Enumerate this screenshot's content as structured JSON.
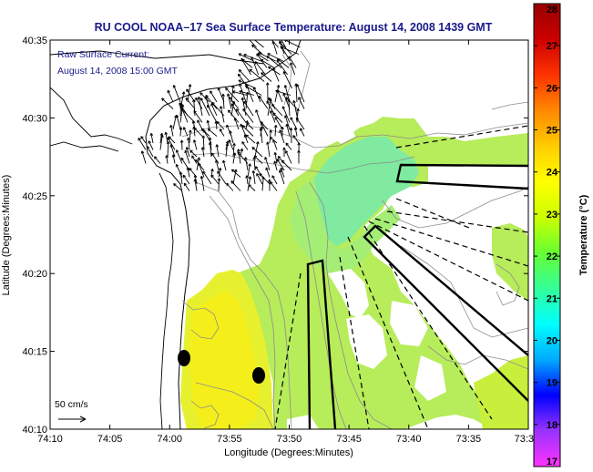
{
  "title": "RU COOL  NOAA–17  Sea Surface Temperature:  August 14, 2008 1439 GMT",
  "annotation": {
    "line1": "Raw Surface Current:",
    "line2": "August 14, 2008 15:00 GMT"
  },
  "scale_label": "50 cm/s",
  "x_axis": {
    "label": "Longitude (Degrees:Minutes)",
    "ticks": [
      "74:10",
      "74:05",
      "74:00",
      "73:55",
      "73:50",
      "73:45",
      "73:40",
      "73:35",
      "73:3"
    ]
  },
  "y_axis": {
    "label": "Latitude (Degrees:Minutes)",
    "ticks": [
      "40:10",
      "40:15",
      "40:20",
      "40:25",
      "40:30",
      "40:35"
    ]
  },
  "colorbar": {
    "label": "Temperature (°C)",
    "ticks": [
      "17",
      "18",
      "19",
      "20",
      "21",
      "22",
      "23",
      "24",
      "25",
      "26",
      "27",
      "28"
    ],
    "stops": [
      "#ff33ff",
      "#9933ff",
      "#0000ff",
      "#00aaff",
      "#00ffff",
      "#33ff99",
      "#66ff33",
      "#ccff00",
      "#ffff00",
      "#ffcc00",
      "#ff8800",
      "#ff3300",
      "#cc0000",
      "#990000"
    ]
  },
  "chart_data": {
    "type": "heatmap",
    "title": "RU COOL  NOAA–17  Sea Surface Temperature:  August 14, 2008 1439 GMT",
    "xlabel": "Longitude (Degrees:Minutes)",
    "ylabel": "Latitude (Degrees:Minutes)",
    "xlim": [
      "74:10",
      "73:30"
    ],
    "ylim": [
      "40:10",
      "40:35"
    ],
    "color_range": [
      17,
      28
    ],
    "units": "°C"
  }
}
